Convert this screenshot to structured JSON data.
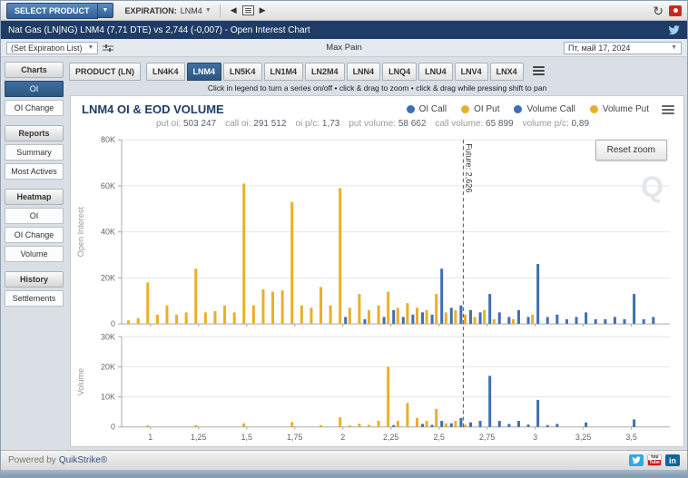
{
  "toolbar": {
    "select_product": "SELECT PRODUCT",
    "expiration_label": "EXPIRATION:",
    "expiration_value": "LNM4"
  },
  "title_bar": {
    "title": "Nat Gas (LN|NG) LNM4 (7,71 DTE) vs 2,744 (-0,007) - Open Interest Chart"
  },
  "subheader": {
    "expiration_list": "(Set Expiration List)",
    "max_pain": "Max Pain",
    "date": "Пт, май 17, 2024"
  },
  "sidebar": {
    "groups": [
      {
        "header": "Charts",
        "items": [
          {
            "label": "OI",
            "active": true
          },
          {
            "label": "OI Change",
            "active": false
          }
        ]
      },
      {
        "header": "Reports",
        "items": [
          {
            "label": "Summary",
            "active": false
          },
          {
            "label": "Most Actives",
            "active": false
          }
        ]
      },
      {
        "header": "Heatmap",
        "items": [
          {
            "label": "OI",
            "active": false
          },
          {
            "label": "OI Change",
            "active": false
          },
          {
            "label": "Volume",
            "active": false
          }
        ]
      },
      {
        "header": "History",
        "items": [
          {
            "label": "Settlements",
            "active": false
          }
        ]
      }
    ]
  },
  "tabs": {
    "product_tab": "PRODUCT (LN)",
    "contracts": [
      "LN4K4",
      "LNM4",
      "LN5K4",
      "LN1M4",
      "LN2M4",
      "LNN4",
      "LNQ4",
      "LNU4",
      "LNV4",
      "LNX4"
    ],
    "active": "LNM4"
  },
  "hint": "Click in legend to turn a series on/off • click & drag to zoom • click & drag while pressing shift to pan",
  "chart": {
    "title": "LNM4 OI & EOD VOLUME",
    "legend": [
      {
        "label": "OI Call",
        "color": "#3d6fb4"
      },
      {
        "label": "OI Put",
        "color": "#eaaf2a"
      },
      {
        "label": "Volume Call",
        "color": "#3d6fb4"
      },
      {
        "label": "Volume Put",
        "color": "#eaaf2a"
      }
    ],
    "stats": [
      {
        "label": "put oi:",
        "value": "503 247"
      },
      {
        "label": "call oi:",
        "value": "291 512"
      },
      {
        "label": "oi p/c:",
        "value": "1,73"
      },
      {
        "label": "put volume:",
        "value": "58 662"
      },
      {
        "label": "call volume:",
        "value": "65 899"
      },
      {
        "label": "volume p/c:",
        "value": "0,89"
      }
    ],
    "reset_zoom": "Reset zoom",
    "watermark": "Q"
  },
  "footer": {
    "powered_by": "Powered by",
    "brand": "QuikStrike®",
    "linkedin_label": "in"
  },
  "chart_data": {
    "type": "bar",
    "title": "LNM4 OI & EOD VOLUME",
    "future_price": 2.626,
    "future_label": "Future: 2,626",
    "x_range": [
      0.85,
      3.7
    ],
    "x_ticks": [
      {
        "pos": 1,
        "label": "1"
      },
      {
        "pos": 1.25,
        "label": "1,25"
      },
      {
        "pos": 1.5,
        "label": "1,5"
      },
      {
        "pos": 1.75,
        "label": "1,75"
      },
      {
        "pos": 2,
        "label": "2"
      },
      {
        "pos": 2.25,
        "label": "2,25"
      },
      {
        "pos": 2.5,
        "label": "2,5"
      },
      {
        "pos": 2.75,
        "label": "2,75"
      },
      {
        "pos": 3,
        "label": "3"
      },
      {
        "pos": 3.25,
        "label": "3,25"
      },
      {
        "pos": 3.5,
        "label": "3,5"
      }
    ],
    "panels": [
      {
        "ylabel": "Open Interest",
        "ylim": [
          0,
          80000
        ],
        "yticks": [
          {
            "v": 0,
            "label": "0"
          },
          {
            "v": 20000,
            "label": "20K"
          },
          {
            "v": 40000,
            "label": "40K"
          },
          {
            "v": 60000,
            "label": "60K"
          },
          {
            "v": 80000,
            "label": "80K"
          }
        ],
        "series": [
          {
            "name": "OI Put",
            "color": "#eaaf2a",
            "points": [
              [
                0.9,
                1500
              ],
              [
                0.95,
                2500
              ],
              [
                1.0,
                18000
              ],
              [
                1.05,
                4000
              ],
              [
                1.1,
                8000
              ],
              [
                1.15,
                4000
              ],
              [
                1.2,
                5000
              ],
              [
                1.25,
                24000
              ],
              [
                1.3,
                5000
              ],
              [
                1.35,
                5500
              ],
              [
                1.4,
                8000
              ],
              [
                1.45,
                5000
              ],
              [
                1.5,
                61000
              ],
              [
                1.55,
                8000
              ],
              [
                1.6,
                15000
              ],
              [
                1.65,
                14000
              ],
              [
                1.7,
                14500
              ],
              [
                1.75,
                53000
              ],
              [
                1.8,
                8000
              ],
              [
                1.85,
                7000
              ],
              [
                1.9,
                16000
              ],
              [
                1.95,
                8000
              ],
              [
                2.0,
                59000
              ],
              [
                2.05,
                7000
              ],
              [
                2.1,
                13000
              ],
              [
                2.15,
                6000
              ],
              [
                2.2,
                8000
              ],
              [
                2.25,
                14000
              ],
              [
                2.3,
                7000
              ],
              [
                2.35,
                9000
              ],
              [
                2.4,
                7000
              ],
              [
                2.45,
                6000
              ],
              [
                2.5,
                13000
              ],
              [
                2.55,
                5000
              ],
              [
                2.6,
                6000
              ],
              [
                2.65,
                4000
              ],
              [
                2.7,
                3000
              ],
              [
                2.75,
                6000
              ],
              [
                2.8,
                2000
              ],
              [
                2.9,
                2000
              ],
              [
                3.0,
                4000
              ]
            ]
          },
          {
            "name": "OI Call",
            "color": "#3d6fb4",
            "points": [
              [
                2.0,
                3000
              ],
              [
                2.1,
                2000
              ],
              [
                2.2,
                3000
              ],
              [
                2.25,
                6000
              ],
              [
                2.3,
                3000
              ],
              [
                2.35,
                4000
              ],
              [
                2.4,
                5000
              ],
              [
                2.45,
                4000
              ],
              [
                2.5,
                24000
              ],
              [
                2.55,
                7000
              ],
              [
                2.6,
                8000
              ],
              [
                2.65,
                6000
              ],
              [
                2.7,
                5000
              ],
              [
                2.75,
                13000
              ],
              [
                2.8,
                5000
              ],
              [
                2.85,
                3000
              ],
              [
                2.9,
                6000
              ],
              [
                2.95,
                3000
              ],
              [
                3.0,
                26000
              ],
              [
                3.05,
                3000
              ],
              [
                3.1,
                4000
              ],
              [
                3.15,
                2000
              ],
              [
                3.2,
                3000
              ],
              [
                3.25,
                5000
              ],
              [
                3.3,
                2000
              ],
              [
                3.35,
                2000
              ],
              [
                3.4,
                3000
              ],
              [
                3.45,
                2000
              ],
              [
                3.5,
                13000
              ],
              [
                3.55,
                2000
              ],
              [
                3.6,
                3000
              ]
            ]
          }
        ]
      },
      {
        "ylabel": "Volume",
        "ylim": [
          0,
          30000
        ],
        "yticks": [
          {
            "v": 0,
            "label": "0"
          },
          {
            "v": 10000,
            "label": "10K"
          },
          {
            "v": 20000,
            "label": "20K"
          },
          {
            "v": 30000,
            "label": "30K"
          }
        ],
        "series": [
          {
            "name": "Volume Put",
            "color": "#eaaf2a",
            "points": [
              [
                1.0,
                500
              ],
              [
                1.25,
                600
              ],
              [
                1.5,
                1200
              ],
              [
                1.75,
                1600
              ],
              [
                1.9,
                600
              ],
              [
                2.0,
                3200
              ],
              [
                2.05,
                500
              ],
              [
                2.1,
                1100
              ],
              [
                2.15,
                700
              ],
              [
                2.2,
                2000
              ],
              [
                2.25,
                20000
              ],
              [
                2.3,
                2000
              ],
              [
                2.35,
                8000
              ],
              [
                2.4,
                3000
              ],
              [
                2.45,
                2000
              ],
              [
                2.5,
                6000
              ],
              [
                2.55,
                1200
              ],
              [
                2.6,
                2000
              ],
              [
                2.65,
                800
              ]
            ]
          },
          {
            "name": "Volume Call",
            "color": "#3d6fb4",
            "points": [
              [
                2.25,
                600
              ],
              [
                2.4,
                1000
              ],
              [
                2.45,
                700
              ],
              [
                2.5,
                2000
              ],
              [
                2.55,
                1200
              ],
              [
                2.6,
                3000
              ],
              [
                2.65,
                1500
              ],
              [
                2.7,
                2000
              ],
              [
                2.75,
                17000
              ],
              [
                2.8,
                2000
              ],
              [
                2.85,
                1000
              ],
              [
                2.9,
                2000
              ],
              [
                2.95,
                800
              ],
              [
                3.0,
                9000
              ],
              [
                3.05,
                600
              ],
              [
                3.1,
                1000
              ],
              [
                3.25,
                1500
              ],
              [
                3.5,
                2500
              ]
            ]
          }
        ]
      }
    ]
  }
}
